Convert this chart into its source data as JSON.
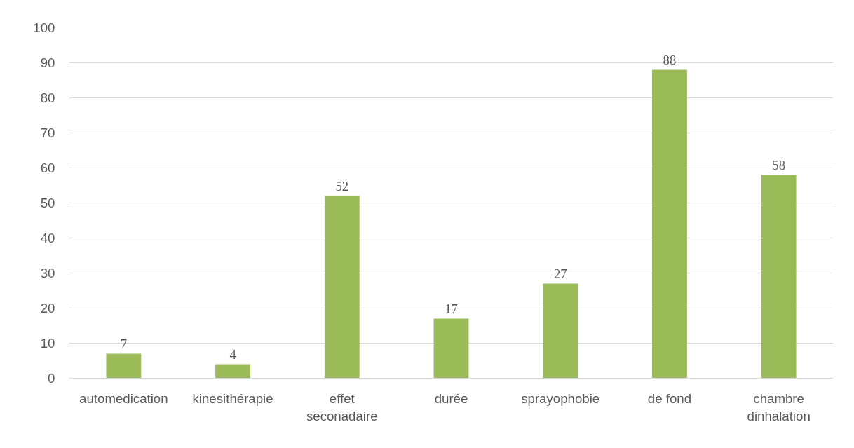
{
  "chart_data": {
    "type": "bar",
    "categories": [
      "automedication",
      "kinesithérapie",
      "effet seconadaire",
      "durée",
      "sprayophobie",
      "de fond",
      "chambre dinhalation"
    ],
    "values": [
      7,
      4,
      52,
      17,
      27,
      88,
      58
    ],
    "color": "#9bbb59",
    "ylim": [
      0,
      100
    ],
    "yticks": [
      0,
      10,
      20,
      30,
      40,
      50,
      60,
      70,
      80,
      90,
      100
    ],
    "grid": "y",
    "data_labels": true
  }
}
